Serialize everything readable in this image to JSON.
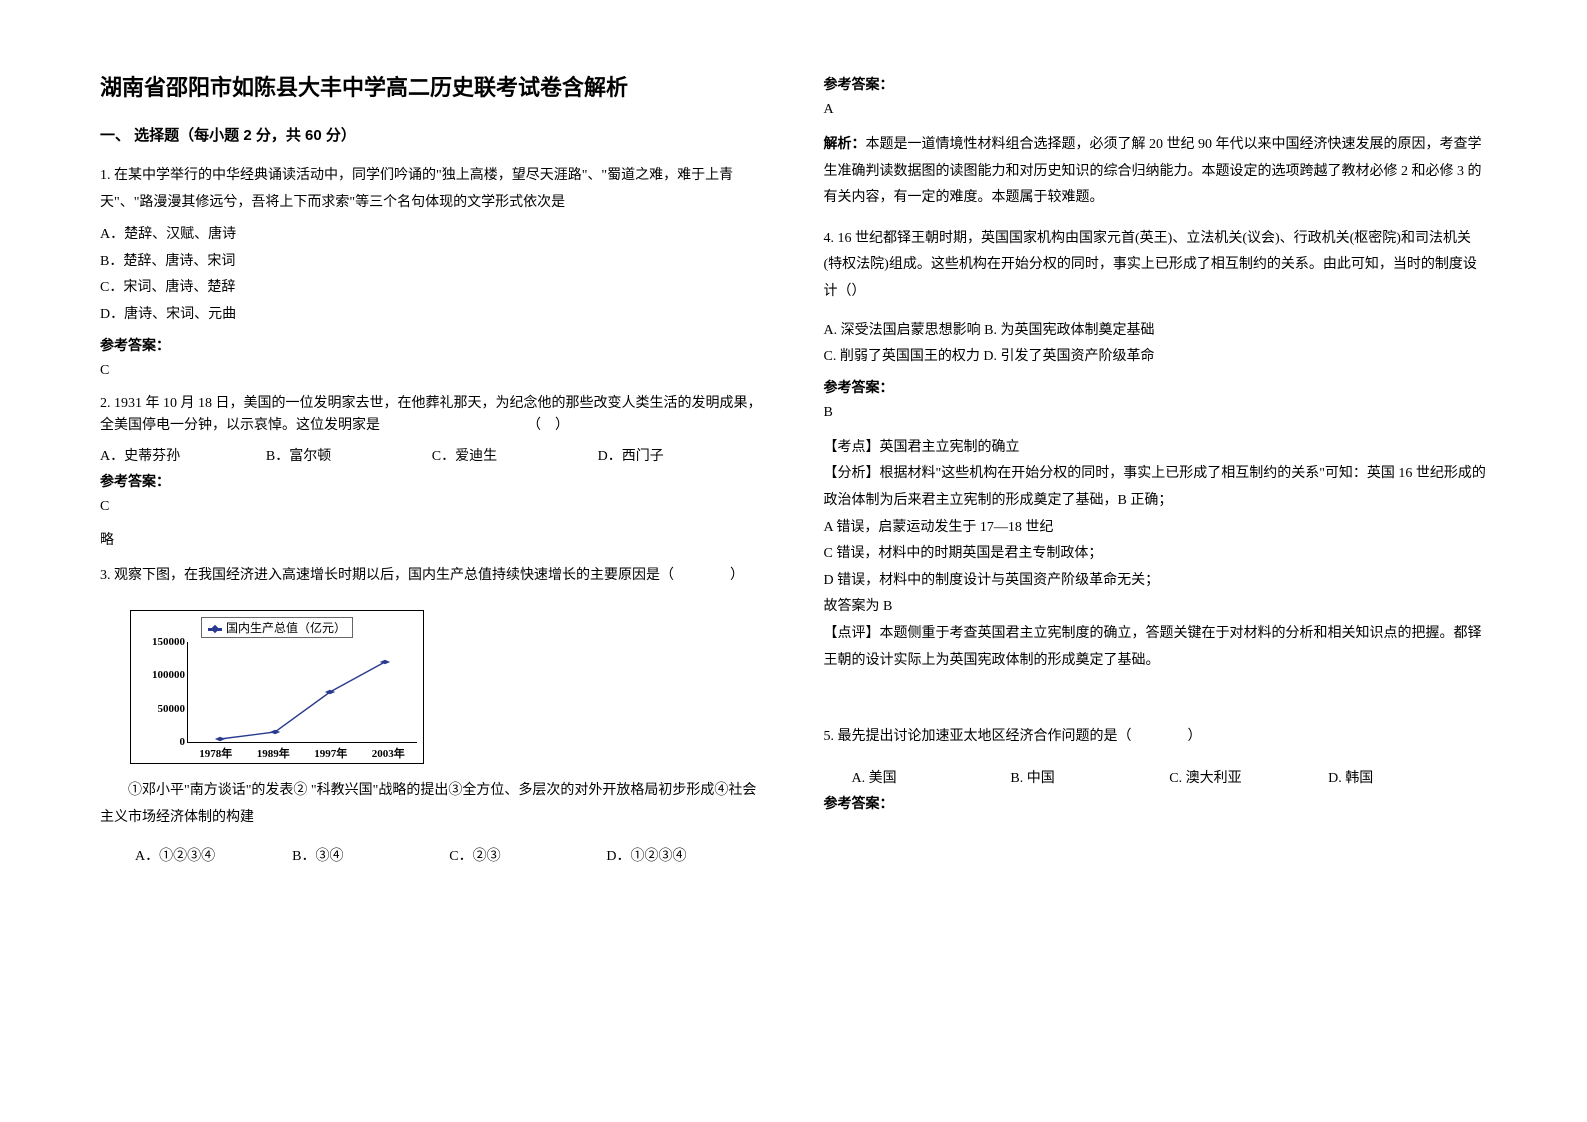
{
  "title": "湖南省邵阳市如陈县大丰中学高二历史联考试卷含解析",
  "section1_head": "一、 选择题（每小题 2 分，共 60 分）",
  "q1": {
    "body": "1. 在某中学举行的中华经典诵读活动中，同学们吟诵的\"独上高楼，望尽天涯路\"、\"蜀道之难，难于上青天\"、\"路漫漫其修远兮，吾将上下而求索\"等三个名句体现的文学形式依次是",
    "optA": "A．楚辞、汉赋、唐诗",
    "optB": "B．楚辞、唐诗、宋词",
    "optC": "C．宋词、唐诗、楚辞",
    "optD": "D．唐诗、宋词、元曲",
    "ans_head": "参考答案：",
    "ans": "C"
  },
  "q2": {
    "body": "2. 1931 年 10 月 18 日，美国的一位发明家去世，在他葬礼那天，为纪念他的那些改变人类生活的发明成果，全美国停电一分钟，以示哀悼。这位发明家是　　　　　　　　　　　（　）",
    "optA": "A．史蒂芬孙",
    "optB": "B．富尔顿",
    "optC": "C．爱迪生",
    "optD": "D．西门子",
    "ans_head": "参考答案：",
    "ans": "C",
    "brief": "略"
  },
  "q3": {
    "body": "3. 观察下图，在我国经济进入高速增长时期以后，国内生产总值持续快速增长的主要原因是（　　　　）",
    "chart": {
      "legend": "国内生产总值（亿元）",
      "legend_color": "#2a3b8f",
      "line_color": "#2a3b8f",
      "marker_color": "#2a3b8f",
      "y_ticks": [
        "0",
        "50000",
        "100000",
        "150000"
      ],
      "x_labels": [
        "1978年",
        "1989年",
        "1997年",
        "2003年"
      ],
      "points": [
        {
          "x": 0.14,
          "y": 0.97
        },
        {
          "x": 0.38,
          "y": 0.9
        },
        {
          "x": 0.62,
          "y": 0.5
        },
        {
          "x": 0.86,
          "y": 0.2
        }
      ]
    },
    "desc": "①邓小平\"南方谈话\"的发表② \"科教兴国\"战略的提出③全方位、多层次的对外开放格局初步形成④社会主义市场经济体制的构建",
    "optA": "A．①②③④",
    "optB": "B．③④",
    "optC": "C．②③",
    "optD": "D．①②③④",
    "ans_head": "参考答案：",
    "ans": "A",
    "analysis": "解析：本题是一道情境性材料组合选择题，必须了解 20 世纪 90 年代以来中国经济快速发展的原因，考查学生准确判读数据图的读图能力和对历史知识的综合归纳能力。本题设定的选项跨越了教材必修 2 和必修 3 的有关内容，有一定的难度。本题属于较难题。"
  },
  "q4": {
    "body": "4. 16 世纪都铎王朝时期，英国国家机构由国家元首(英王)、立法机关(议会)、行政机关(枢密院)和司法机关(特权法院)组成。这些机构在开始分权的同时，事实上已形成了相互制约的关系。由此可知，当时的制度设计（）",
    "optA": "A. 深受法国启蒙思想影响",
    "optB": "B. 为英国宪政体制奠定基础",
    "optC": "C. 削弱了英国国王的权力",
    "optD": "D. 引发了英国资产阶级革命",
    "ans_head": "参考答案：",
    "ans": "B",
    "point": "【考点】英国君主立宪制的确立",
    "fenxi1": "【分析】根据材料\"这些机构在开始分权的同时，事实上已形成了相互制约的关系\"可知：英国 16 世纪形成的政治体制为后来君主立宪制的形成奠定了基础，B 正确；",
    "fenxi2": "A 错误，启蒙运动发生于 17—18 世纪",
    "fenxi3": "C 错误，材料中的时期英国是君主专制政体；",
    "fenxi4": "D 错误，材料中的制度设计与英国资产阶级革命无关；",
    "fenxi5": "故答案为 B",
    "comment": "【点评】本题侧重于考查英国君主立宪制度的确立，答题关键在于对材料的分析和相关知识点的把握。都铎王朝的设计实际上为英国宪政体制的形成奠定了基础。"
  },
  "q5": {
    "body": "5. 最先提出讨论加速亚太地区经济合作问题的是（　　　　）",
    "optA": "A. 美国",
    "optB": "B. 中国",
    "optC": "C. 澳大利亚",
    "optD": "D. 韩国",
    "ans_head": "参考答案："
  }
}
